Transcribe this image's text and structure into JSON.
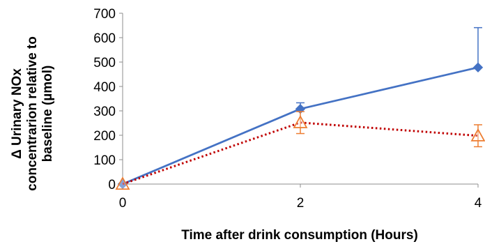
{
  "chart_data": {
    "type": "line",
    "title": "",
    "xlabel": "Time after drink consumption (Hours)",
    "ylabel_lines": [
      "Δ Urinary NOx",
      "concentrarion relative to",
      "baseline (µmol)"
    ],
    "x_ticks": [
      0,
      2,
      4
    ],
    "y_ticks": [
      0,
      100,
      200,
      300,
      400,
      500,
      600,
      700
    ],
    "xlim": [
      0,
      4
    ],
    "ylim": [
      0,
      700
    ],
    "grid": false,
    "legend": "none",
    "series": [
      {
        "x": [
          0,
          2,
          4
        ],
        "values": [
          0,
          308,
          478
        ],
        "error": [
          0,
          25,
          163
        ],
        "color": "#4472C4",
        "line_style": "solid",
        "marker": "diamond"
      },
      {
        "x": [
          0,
          2,
          4
        ],
        "values": [
          0,
          252,
          198
        ],
        "error": [
          0,
          45,
          45
        ],
        "color": "#C00000",
        "marker_color": "#ED7D31",
        "line_style": "dotted",
        "marker": "open-triangle"
      }
    ]
  }
}
